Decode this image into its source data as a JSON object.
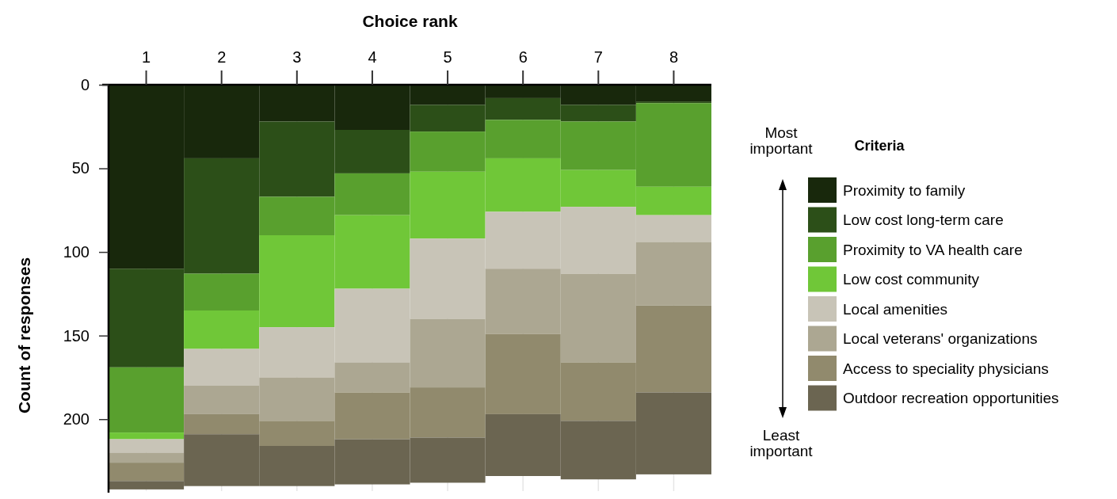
{
  "chart_data": {
    "type": "bar",
    "stacked": true,
    "xlabel": "Choice rank",
    "ylabel": "Count of responses",
    "legend_title": "Criteria",
    "legend": "right",
    "grid": "x",
    "categories": [
      "1",
      "2",
      "3",
      "4",
      "5",
      "6",
      "7",
      "8"
    ],
    "ylim": [
      243,
      0
    ],
    "yticks": [
      0,
      50,
      100,
      150,
      200
    ],
    "series": [
      {
        "name": "Proximity to family",
        "color": "#18280c",
        "values": [
          110,
          44,
          22,
          27,
          12,
          8,
          12,
          10
        ]
      },
      {
        "name": "Low cost long-term care",
        "color": "#2c4f18",
        "values": [
          59,
          69,
          45,
          26,
          16,
          13,
          10,
          1
        ]
      },
      {
        "name": "Proximity to VA health care",
        "color": "#59a02e",
        "values": [
          39,
          22,
          23,
          25,
          24,
          23,
          29,
          50
        ]
      },
      {
        "name": "Low cost community",
        "color": "#70c738",
        "values": [
          4,
          23,
          55,
          44,
          40,
          32,
          22,
          17
        ]
      },
      {
        "name": "Local amenities",
        "color": "#c8c4b7",
        "values": [
          8,
          22,
          30,
          44,
          48,
          34,
          40,
          16
        ]
      },
      {
        "name": "Local veterans' organizations",
        "color": "#aca792",
        "values": [
          6,
          17,
          26,
          18,
          41,
          39,
          53,
          38
        ]
      },
      {
        "name": "Access to speciality physicians",
        "color": "#918a6d",
        "values": [
          11,
          12,
          15,
          28,
          30,
          48,
          35,
          52
        ]
      },
      {
        "name": "Outdoor recreation opportunities",
        "color": "#6b6551",
        "values": [
          5,
          31,
          24,
          27,
          27,
          37,
          35,
          49
        ]
      }
    ],
    "annotations": [
      "Most important",
      "Least important"
    ]
  }
}
